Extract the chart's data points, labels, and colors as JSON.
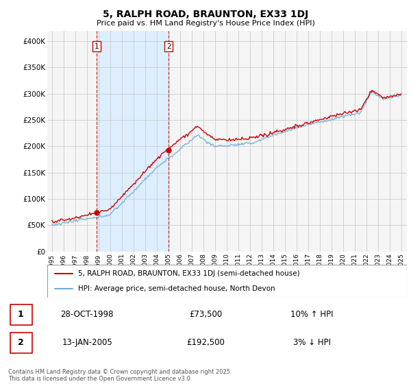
{
  "title": "5, RALPH ROAD, BRAUNTON, EX33 1DJ",
  "subtitle": "Price paid vs. HM Land Registry's House Price Index (HPI)",
  "ylim": [
    0,
    420000
  ],
  "yticks": [
    0,
    50000,
    100000,
    150000,
    200000,
    250000,
    300000,
    350000,
    400000
  ],
  "ytick_labels": [
    "£0",
    "£50K",
    "£100K",
    "£150K",
    "£200K",
    "£250K",
    "£300K",
    "£350K",
    "£400K"
  ],
  "hpi_color": "#6baed6",
  "price_color": "#cc0000",
  "vline_color": "#cc0000",
  "shade_color": "#ddeeff",
  "grid_color": "#cccccc",
  "plot_bg_color": "#f5f5f5",
  "sale1": {
    "date": "28-OCT-1998",
    "price": 73500,
    "year": 1998.83,
    "label": "1",
    "pct": "10%",
    "dir": "↑"
  },
  "sale2": {
    "date": "13-JAN-2005",
    "price": 192500,
    "year": 2005.04,
    "label": "2",
    "pct": "3%",
    "dir": "↓"
  },
  "legend_line1": "5, RALPH ROAD, BRAUNTON, EX33 1DJ (semi-detached house)",
  "legend_line2": "HPI: Average price, semi-detached house, North Devon",
  "footer": "Contains HM Land Registry data © Crown copyright and database right 2025.\nThis data is licensed under the Open Government Licence v3.0.",
  "xtick_years": [
    1995,
    1996,
    1997,
    1998,
    1999,
    2000,
    2001,
    2002,
    2003,
    2004,
    2005,
    2006,
    2007,
    2008,
    2009,
    2010,
    2011,
    2012,
    2013,
    2014,
    2015,
    2016,
    2017,
    2018,
    2019,
    2020,
    2021,
    2022,
    2023,
    2024,
    2025
  ]
}
